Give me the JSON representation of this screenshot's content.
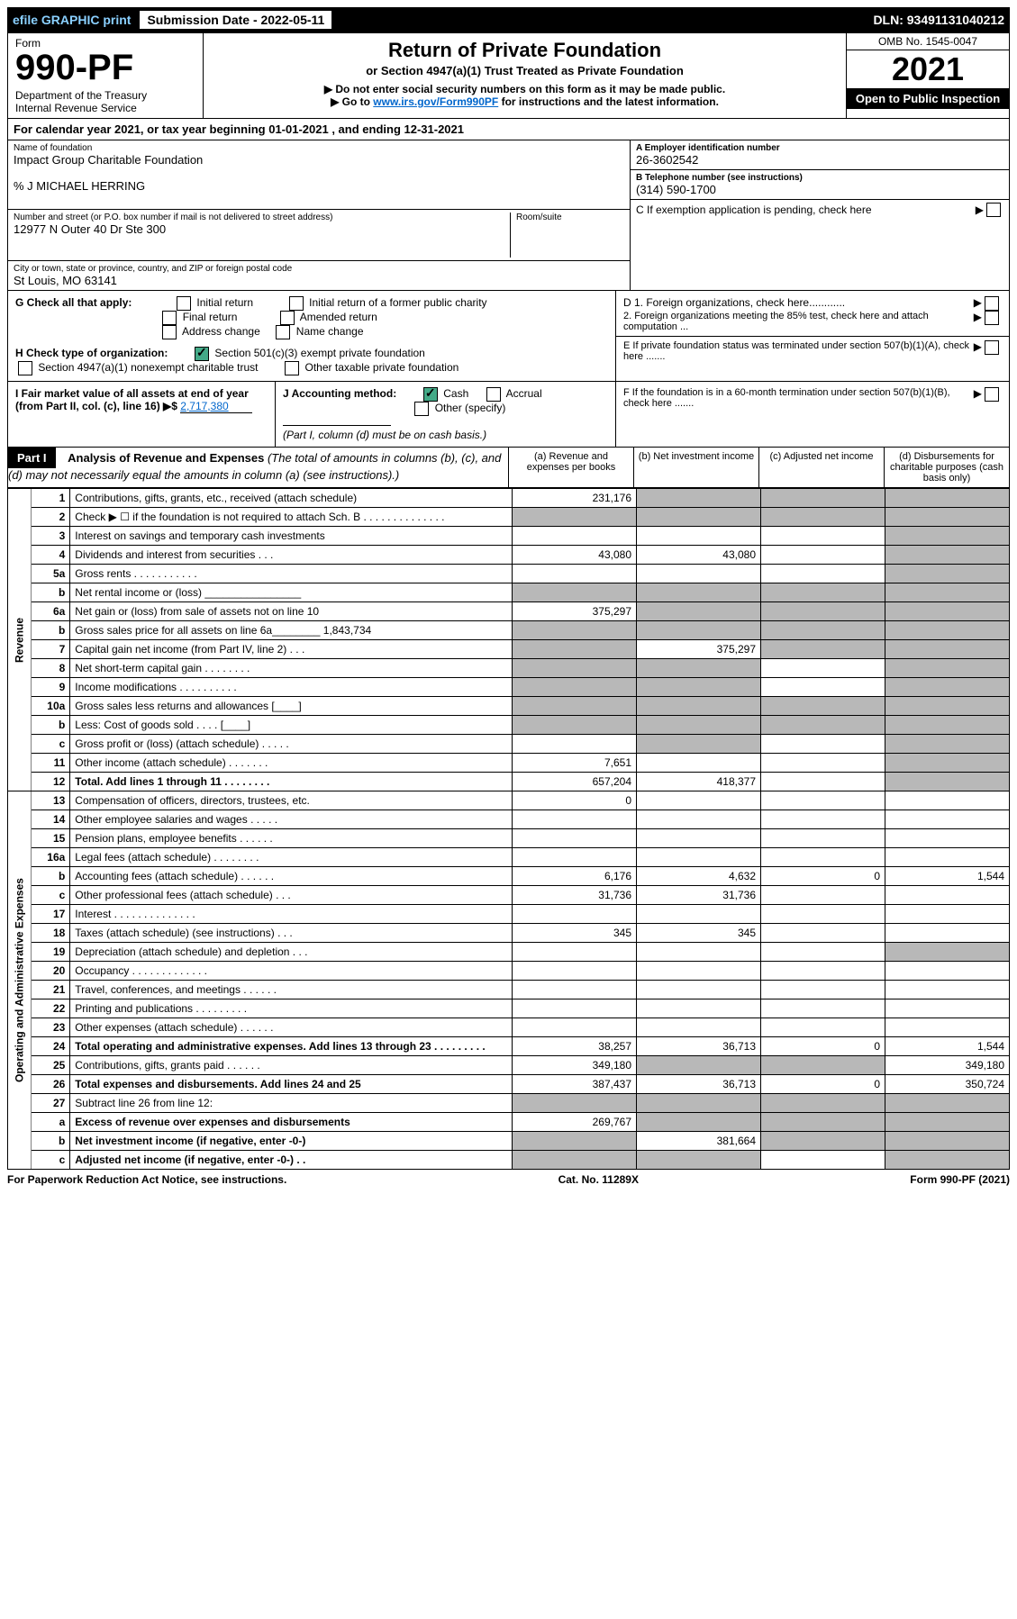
{
  "top_bar": {
    "efile": "efile GRAPHIC print",
    "submission_label": "Submission Date - 2022-05-11",
    "dln": "DLN: 93491131040212"
  },
  "header": {
    "form_label": "Form",
    "form_number": "990-PF",
    "dept": "Department of the Treasury\nInternal Revenue Service",
    "title": "Return of Private Foundation",
    "subtitle1": "or Section 4947(a)(1) Trust Treated as Private Foundation",
    "subtitle2a": "▶ Do not enter social security numbers on this form as it may be made public.",
    "subtitle2b": "▶ Go to ",
    "irs_link": "www.irs.gov/Form990PF",
    "subtitle2c": " for instructions and the latest information.",
    "omb": "OMB No. 1545-0047",
    "year": "2021",
    "open_public": "Open to Public Inspection"
  },
  "cal_year": "For calendar year 2021, or tax year beginning 01-01-2021           , and ending 12-31-2021",
  "foundation": {
    "name_label": "Name of foundation",
    "name": "Impact Group Charitable Foundation",
    "care_of": "% J MICHAEL HERRING",
    "addr_label": "Number and street (or P.O. box number if mail is not delivered to street address)",
    "addr": "12977 N Outer 40 Dr Ste 300",
    "room_label": "Room/suite",
    "city_label": "City or town, state or province, country, and ZIP or foreign postal code",
    "city": "St Louis, MO  63141"
  },
  "right_info": {
    "a_label": "A Employer identification number",
    "a_val": "26-3602542",
    "b_label": "B Telephone number (see instructions)",
    "b_val": "(314) 590-1700",
    "c_label": "C If exemption application is pending, check here",
    "d1": "D 1. Foreign organizations, check here............",
    "d2": "    2. Foreign organizations meeting the 85% test, check here and attach computation ...",
    "e": "E  If private foundation status was terminated under section 507(b)(1)(A), check here .......",
    "f": "F  If the foundation is in a 60-month termination under section 507(b)(1)(B), check here ......."
  },
  "section_g": {
    "label": "G Check all that apply:",
    "opts": [
      "Initial return",
      "Initial return of a former public charity",
      "Final return",
      "Amended return",
      "Address change",
      "Name change"
    ]
  },
  "section_h": {
    "label": "H Check type of organization:",
    "opt1": "Section 501(c)(3) exempt private foundation",
    "opt2": "Section 4947(a)(1) nonexempt charitable trust",
    "opt3": "Other taxable private foundation"
  },
  "section_i": {
    "label": "I Fair market value of all assets at end of year (from Part II, col. (c), line 16) ▶$ ",
    "val": "2,717,380"
  },
  "section_j": {
    "label": "J Accounting method:",
    "cash": "Cash",
    "accrual": "Accrual",
    "other": "Other (specify)",
    "note": "(Part I, column (d) must be on cash basis.)"
  },
  "part1": {
    "label": "Part I",
    "title": "Analysis of Revenue and Expenses",
    "note": "(The total of amounts in columns (b), (c), and (d) may not necessarily equal the amounts in column (a) (see instructions).)",
    "col_a": "(a)  Revenue and expenses per books",
    "col_b": "(b)  Net investment income",
    "col_c": "(c)  Adjusted net income",
    "col_d": "(d)  Disbursements for charitable purposes (cash basis only)"
  },
  "side_labels": {
    "revenue": "Revenue",
    "expenses": "Operating and Administrative Expenses"
  },
  "rows": [
    {
      "n": "1",
      "desc": "Contributions, gifts, grants, etc., received (attach schedule)",
      "a": "231,176",
      "b_shaded": true,
      "c_shaded": true,
      "d_shaded": true
    },
    {
      "n": "2",
      "desc": "Check ▶ ☐ if the foundation is not required to attach Sch. B    .   .   .   .   .   .   .   .   .   .   .   .   .   .",
      "a_shaded": true,
      "b_shaded": true,
      "c_shaded": true,
      "d_shaded": true
    },
    {
      "n": "3",
      "desc": "Interest on savings and temporary cash investments",
      "a": "",
      "b": "",
      "c": "",
      "d_shaded": true
    },
    {
      "n": "4",
      "desc": "Dividends and interest from securities   .   .   .",
      "a": "43,080",
      "b": "43,080",
      "c": "",
      "d_shaded": true
    },
    {
      "n": "5a",
      "desc": "Gross rents    .   .   .   .   .   .   .   .   .   .   .",
      "a": "",
      "b": "",
      "c": "",
      "d_shaded": true
    },
    {
      "n": "b",
      "desc": "Net rental income or (loss)  ________________",
      "a_shaded": true,
      "b_shaded": true,
      "c_shaded": true,
      "d_shaded": true
    },
    {
      "n": "6a",
      "desc": "Net gain or (loss) from sale of assets not on line 10",
      "a": "375,297",
      "b_shaded": true,
      "c_shaded": true,
      "d_shaded": true
    },
    {
      "n": "b",
      "desc": "Gross sales price for all assets on line 6a________ 1,843,734",
      "a_shaded": true,
      "b_shaded": true,
      "c_shaded": true,
      "d_shaded": true
    },
    {
      "n": "7",
      "desc": "Capital gain net income (from Part IV, line 2)  .  .  .",
      "a_shaded": true,
      "b": "375,297",
      "c_shaded": true,
      "d_shaded": true
    },
    {
      "n": "8",
      "desc": "Net short-term capital gain  .  .  .  .  .  .  .  .",
      "a_shaded": true,
      "b_shaded": true,
      "c": "",
      "d_shaded": true
    },
    {
      "n": "9",
      "desc": "Income modifications  .  .  .  .  .  .  .  .  .  .",
      "a_shaded": true,
      "b_shaded": true,
      "c": "",
      "d_shaded": true
    },
    {
      "n": "10a",
      "desc": "Gross sales less returns and allowances  [____]",
      "a_shaded": true,
      "b_shaded": true,
      "c_shaded": true,
      "d_shaded": true
    },
    {
      "n": "b",
      "desc": "Less: Cost of goods sold   .  .  .  .  [____]",
      "a_shaded": true,
      "b_shaded": true,
      "c_shaded": true,
      "d_shaded": true
    },
    {
      "n": "c",
      "desc": "Gross profit or (loss) (attach schedule)   .  .  .  .  .",
      "a": "",
      "b_shaded": true,
      "c": "",
      "d_shaded": true
    },
    {
      "n": "11",
      "desc": "Other income (attach schedule)   .  .  .  .  .  .  .",
      "a": "7,651",
      "b": "",
      "c": "",
      "d_shaded": true
    },
    {
      "n": "12",
      "desc": "Total. Add lines 1 through 11  .  .  .  .  .  .  .  .",
      "a": "657,204",
      "b": "418,377",
      "c": "",
      "d_shaded": true,
      "bold": true
    },
    {
      "n": "13",
      "desc": "Compensation of officers, directors, trustees, etc.",
      "a": "0",
      "b": "",
      "c": "",
      "d": ""
    },
    {
      "n": "14",
      "desc": "Other employee salaries and wages  .  .  .  .  .",
      "a": "",
      "b": "",
      "c": "",
      "d": ""
    },
    {
      "n": "15",
      "desc": "Pension plans, employee benefits  .  .  .  .  .  .",
      "a": "",
      "b": "",
      "c": "",
      "d": ""
    },
    {
      "n": "16a",
      "desc": "Legal fees (attach schedule)  .  .  .  .  .  .  .  .",
      "a": "",
      "b": "",
      "c": "",
      "d": ""
    },
    {
      "n": "b",
      "desc": "Accounting fees (attach schedule)  .  .  .  .  .  .",
      "a": "6,176",
      "b": "4,632",
      "c": "0",
      "d": "1,544"
    },
    {
      "n": "c",
      "desc": "Other professional fees (attach schedule)   .  .  .",
      "a": "31,736",
      "b": "31,736",
      "c": "",
      "d": ""
    },
    {
      "n": "17",
      "desc": "Interest  .  .  .  .  .  .  .  .  .  .  .  .  .  .",
      "a": "",
      "b": "",
      "c": "",
      "d": ""
    },
    {
      "n": "18",
      "desc": "Taxes (attach schedule) (see instructions)  .  .  .",
      "a": "345",
      "b": "345",
      "c": "",
      "d": ""
    },
    {
      "n": "19",
      "desc": "Depreciation (attach schedule) and depletion  .  .  .",
      "a": "",
      "b": "",
      "c": "",
      "d_shaded": true
    },
    {
      "n": "20",
      "desc": "Occupancy  .  .  .  .  .  .  .  .  .  .  .  .  .",
      "a": "",
      "b": "",
      "c": "",
      "d": ""
    },
    {
      "n": "21",
      "desc": "Travel, conferences, and meetings  .  .  .  .  .  .",
      "a": "",
      "b": "",
      "c": "",
      "d": ""
    },
    {
      "n": "22",
      "desc": "Printing and publications  .  .  .  .  .  .  .  .  .",
      "a": "",
      "b": "",
      "c": "",
      "d": ""
    },
    {
      "n": "23",
      "desc": "Other expenses (attach schedule)  .  .  .  .  .  .",
      "a": "",
      "b": "",
      "c": "",
      "d": ""
    },
    {
      "n": "24",
      "desc": "Total operating and administrative expenses. Add lines 13 through 23  .  .  .  .  .  .  .  .  .",
      "a": "38,257",
      "b": "36,713",
      "c": "0",
      "d": "1,544",
      "bold": true
    },
    {
      "n": "25",
      "desc": "Contributions, gifts, grants paid   .  .  .  .  .  .",
      "a": "349,180",
      "b_shaded": true,
      "c_shaded": true,
      "d": "349,180"
    },
    {
      "n": "26",
      "desc": "Total expenses and disbursements. Add lines 24 and 25",
      "a": "387,437",
      "b": "36,713",
      "c": "0",
      "d": "350,724",
      "bold": true
    },
    {
      "n": "27",
      "desc": "Subtract line 26 from line 12:",
      "a_shaded": true,
      "b_shaded": true,
      "c_shaded": true,
      "d_shaded": true
    },
    {
      "n": "a",
      "desc": "Excess of revenue over expenses and disbursements",
      "a": "269,767",
      "b_shaded": true,
      "c_shaded": true,
      "d_shaded": true,
      "bold": true
    },
    {
      "n": "b",
      "desc": "Net investment income (if negative, enter -0-)",
      "a_shaded": true,
      "b": "381,664",
      "c_shaded": true,
      "d_shaded": true,
      "bold": true
    },
    {
      "n": "c",
      "desc": "Adjusted net income (if negative, enter -0-)  .  .",
      "a_shaded": true,
      "b_shaded": true,
      "c": "",
      "d_shaded": true,
      "bold": true
    }
  ],
  "footer": {
    "left": "For Paperwork Reduction Act Notice, see instructions.",
    "center": "Cat. No. 11289X",
    "right": "Form 990-PF (2021)"
  }
}
